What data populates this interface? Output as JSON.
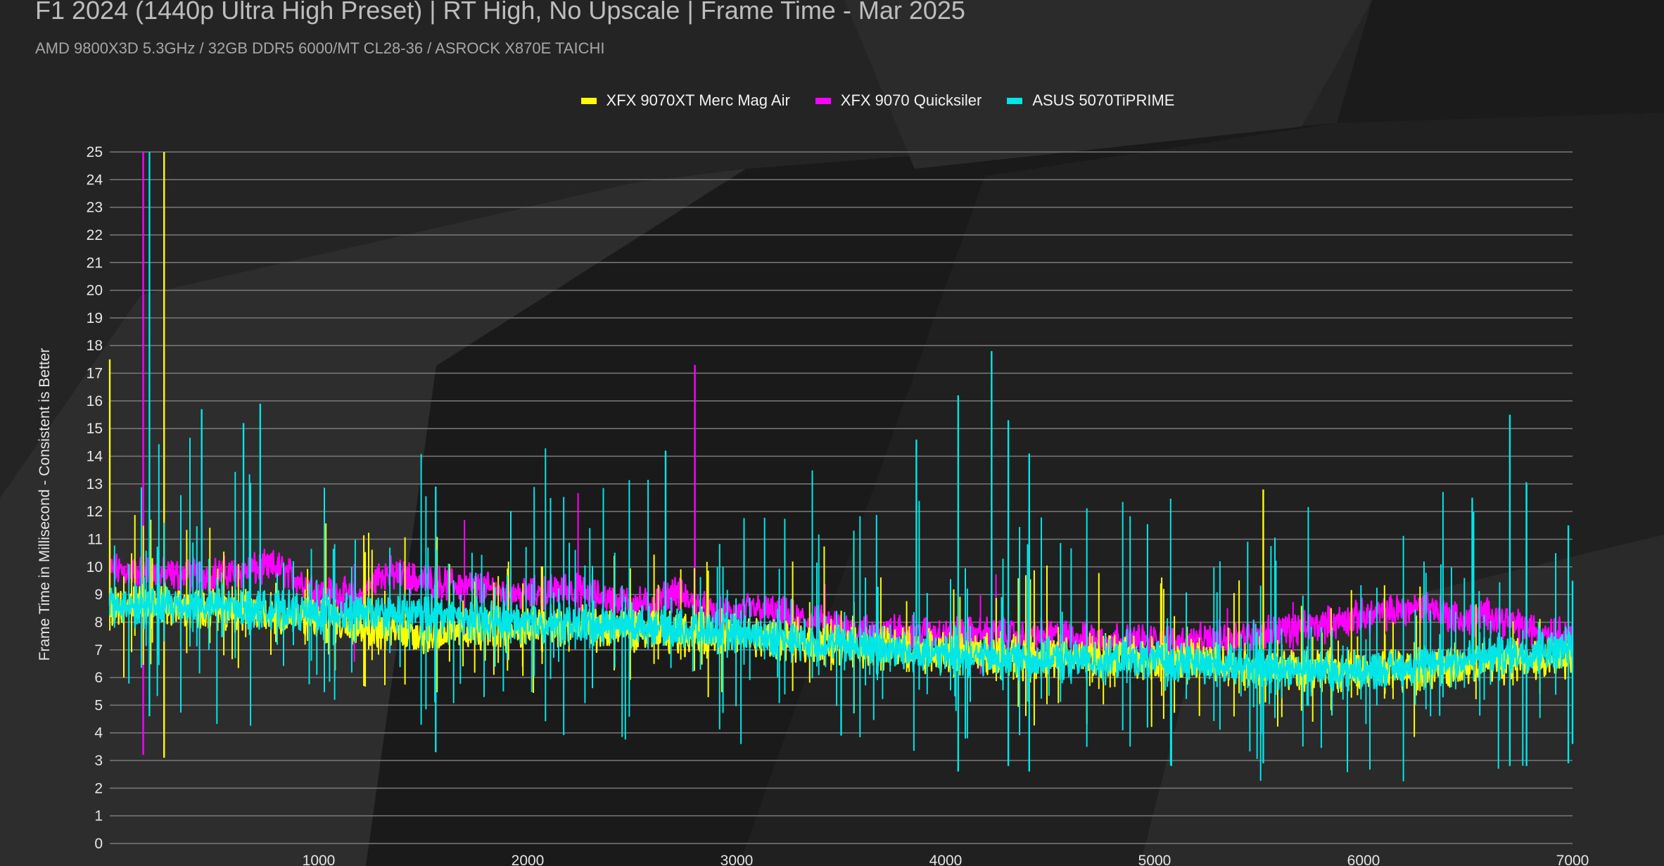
{
  "chart_data": {
    "type": "line",
    "title": "F1 2024 (1440p Ultra High Preset) | RT High, No Upscale | Frame Time - Mar 2025",
    "subtitle": "AMD 9800X3D 5.3GHz / 32GB DDR5 6000/MT CL28-36 / ASROCK X870E TAICHI",
    "xlabel": "",
    "ylabel": "Frame Time in Millisecond - Consistent is Better",
    "xlim": [
      0,
      7000
    ],
    "ylim": [
      0,
      25
    ],
    "x_ticks": [
      "1000",
      "2000",
      "3000",
      "4000",
      "5000",
      "6000",
      "7000"
    ],
    "y_ticks": [
      "0",
      "1",
      "2",
      "3",
      "4",
      "5",
      "6",
      "7",
      "8",
      "9",
      "10",
      "11",
      "12",
      "13",
      "14",
      "15",
      "16",
      "17",
      "18",
      "19",
      "20",
      "21",
      "22",
      "23",
      "24",
      "25"
    ],
    "grid": "horizontal",
    "legend_position": "top-center",
    "series": [
      {
        "name": "XFX 9070XT Merc Mag Air",
        "color": "#ffff00",
        "baseline": {
          "x": [
            0,
            500,
            1000,
            1500,
            2000,
            2500,
            3000,
            3500,
            4000,
            4500,
            5000,
            5500,
            6000,
            6500,
            7000
          ],
          "y": [
            8.6,
            8.5,
            8.1,
            7.6,
            7.8,
            7.7,
            7.5,
            7.2,
            6.9,
            6.7,
            6.7,
            6.4,
            6.2,
            6.4,
            6.8
          ]
        },
        "spikes": [
          {
            "x": 0,
            "y": 17.5
          },
          {
            "x": 260,
            "y": 25
          },
          {
            "x": 260,
            "y": 3.1
          },
          {
            "x": 5520,
            "y": 12.8
          },
          {
            "x": 5530,
            "y": 5.1
          }
        ]
      },
      {
        "name": "XFX 9070 Quicksiler",
        "color": "#ff00ff",
        "baseline": {
          "x": [
            0,
            300,
            600,
            800,
            1000,
            1200,
            1300,
            1500,
            1700,
            2000,
            2200,
            2400,
            2600,
            2700,
            2900,
            3100,
            3300,
            3600,
            4000,
            4500,
            5000,
            5200,
            5500,
            5800,
            6000,
            6300,
            6500,
            6600,
            6800,
            7000
          ],
          "y": [
            9.9,
            9.7,
            9.8,
            10.0,
            9.1,
            8.9,
            9.8,
            9.5,
            9.3,
            9.0,
            9.2,
            8.8,
            8.6,
            9.1,
            8.2,
            8.5,
            8.1,
            7.7,
            7.6,
            7.5,
            7.3,
            7.3,
            7.6,
            7.9,
            8.2,
            8.6,
            8.0,
            8.3,
            7.7,
            7.6
          ]
        },
        "spikes": [
          {
            "x": 160,
            "y": 25
          },
          {
            "x": 160,
            "y": 3.2
          },
          {
            "x": 2800,
            "y": 17.3
          },
          {
            "x": 2800,
            "y": 7.3
          }
        ]
      },
      {
        "name": "ASUS 5070TiPRIME",
        "color": "#00e5e5",
        "baseline": {
          "x": [
            0,
            500,
            1000,
            1500,
            2000,
            2500,
            3000,
            3500,
            4000,
            4500,
            5000,
            5500,
            6000,
            6500,
            7000
          ],
          "y": [
            8.6,
            8.6,
            8.3,
            8.3,
            8.0,
            7.9,
            7.6,
            7.2,
            6.8,
            6.6,
            6.6,
            6.4,
            6.2,
            6.7,
            7.1
          ]
        },
        "spikes": [
          {
            "x": 190,
            "y": 25
          },
          {
            "x": 190,
            "y": 4.6
          },
          {
            "x": 440,
            "y": 15.7
          },
          {
            "x": 640,
            "y": 15.2
          },
          {
            "x": 720,
            "y": 15.9
          },
          {
            "x": 1560,
            "y": 12.9
          },
          {
            "x": 1560,
            "y": 3.3
          },
          {
            "x": 2660,
            "y": 14.2
          },
          {
            "x": 3500,
            "y": 3.9
          },
          {
            "x": 3860,
            "y": 14.6
          },
          {
            "x": 4060,
            "y": 16.2
          },
          {
            "x": 4060,
            "y": 2.6
          },
          {
            "x": 4220,
            "y": 17.8
          },
          {
            "x": 4300,
            "y": 15.3
          },
          {
            "x": 4300,
            "y": 2.8
          },
          {
            "x": 4400,
            "y": 14.1
          },
          {
            "x": 4400,
            "y": 2.6
          },
          {
            "x": 5080,
            "y": 2.8
          },
          {
            "x": 5520,
            "y": 2.9
          },
          {
            "x": 6520,
            "y": 12.5
          },
          {
            "x": 6700,
            "y": 15.5
          },
          {
            "x": 6700,
            "y": 2.8
          },
          {
            "x": 6780,
            "y": 13.0
          },
          {
            "x": 6780,
            "y": 2.8
          },
          {
            "x": 6980,
            "y": 11.5
          },
          {
            "x": 6980,
            "y": 2.9
          },
          {
            "x": 7000,
            "y": 9.5
          },
          {
            "x": 7000,
            "y": 3.6
          }
        ]
      }
    ]
  }
}
